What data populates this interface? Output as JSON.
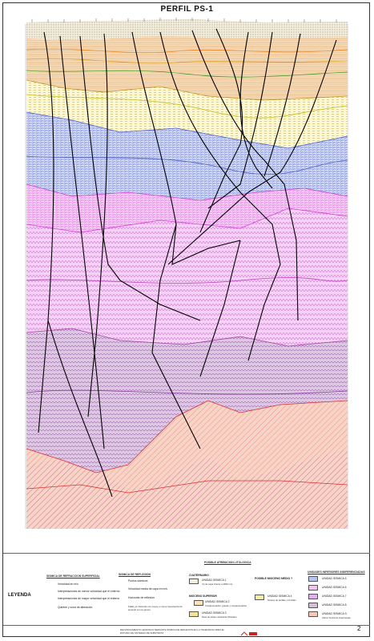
{
  "title": "PERFIL PS-1",
  "legend_title": "LEYENDA",
  "refraction": {
    "header": "SISMICA DE REFRACCION SUPERFICIAL",
    "items": [
      "Velocidad en m/s",
      "Interpretaciones de menor velocidad que el enterno",
      "Interpretaciones de mayor velocidad que el enterno",
      "Quiebre y zona de alteración"
    ]
  },
  "reflection": {
    "header": "SISMICA DE REFLEXION",
    "items": [
      "Puntos sismicos",
      "Velocidad media de capa en m/s",
      "Horizonte de reflexión",
      "Fallas y/o fracturas con mayor o menor importancia de acuerdo con su grosor"
    ]
  },
  "lithology": {
    "header": "POSIBLE ATRIBUCION LITOLOGICA",
    "quaternary_header": "CUATERNARIO",
    "unit1": "UNIDAD SISMICA 1",
    "unit1_desc": "Vp de capa inferior a 2800 m/s.",
    "miocene_sup_header": "MIOCENO SUPERIOR",
    "unit2": "UNIDAD SISMICA 2",
    "unit2_desc": "Conglomerados, gravas y conglomerados",
    "unit3": "UNIDAD SISMICA 3",
    "unit3_desc": "Nivel de tobas volcánicas (Dacitas)",
    "miocene_med_header": "POSIBLE MIOCENO MEDIO ?",
    "unit4": "UNIDAD SISMICA 4",
    "unit4_desc": "Niveles de arcillas y limolitas"
  },
  "inferior": {
    "header": "UNIDADES INFERIORES INDIFERENCIADAS",
    "units": [
      "UNIDAD SISMICA 5",
      "UNIDAD SISMICA 6",
      "UNIDAD SISMICA 7",
      "UNIDAD SISMICA 8",
      "UNIDAD SISMICA 9,"
    ],
    "unit9_note": "Ultimo horizonte interpretado"
  },
  "titleblock": {
    "project": "RECONOCIMIENTO GEOFISICO MEDIANTE SISMICA DE REFLEXION EN LA TOLERANCIA PARA EL ESTUDIO DE SISTEMAS DE SUBSTRATO"
  },
  "page_number": "2",
  "colors": {
    "unit1": "#efe6c8",
    "unit2": "#f6c98e",
    "unit3": "#f3e29a",
    "unit4": "#f2f0a0",
    "unit5": "#b8c4ee",
    "unit6": "#f4c3f3",
    "unit7": "#e0b0f0",
    "unit8": "#d7bcdc",
    "unit9": "#f7c9b8",
    "fault": "#000000",
    "reflector_red": "#e03030"
  }
}
